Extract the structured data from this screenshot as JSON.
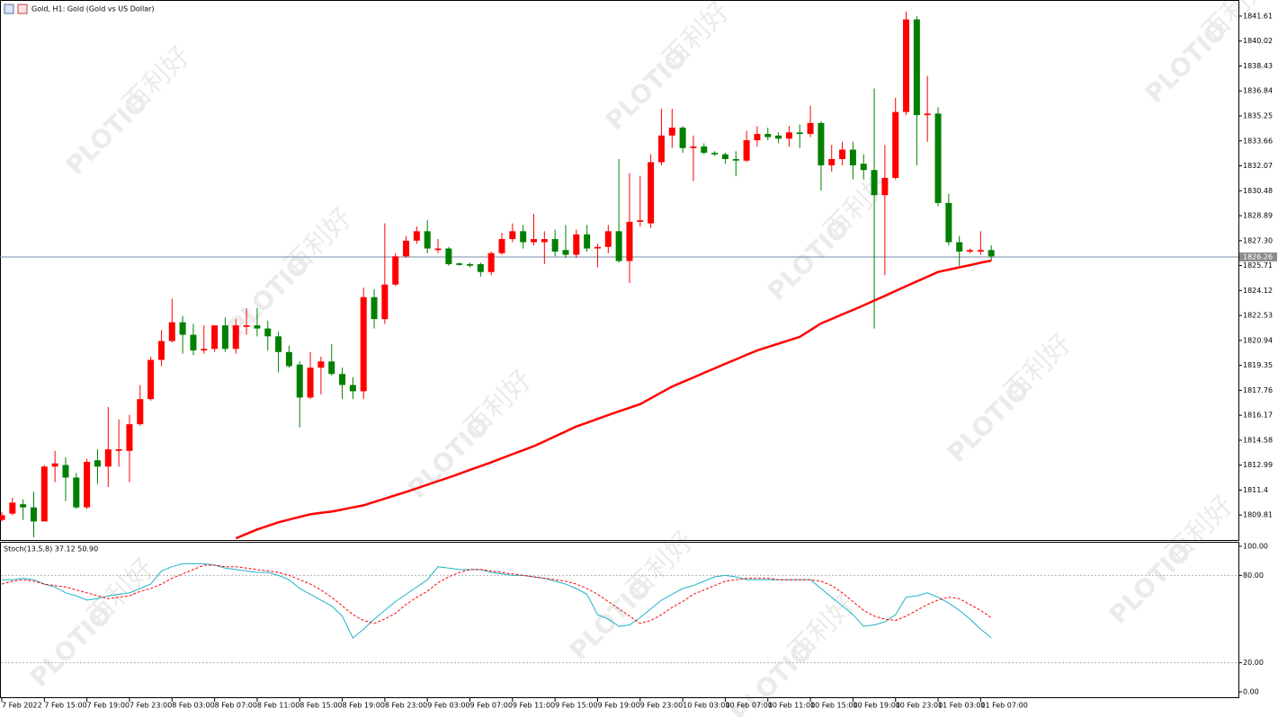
{
  "chart_data": [
    {
      "type": "candlestick",
      "title": "Gold, H1:  Gold (Gold vs US Dollar)",
      "categories": [
        "7 Feb 2022",
        null,
        null,
        null,
        "7 Feb 15:00",
        null,
        null,
        null,
        "7 Feb 19:00",
        null,
        null,
        null,
        "7 Feb 23:00",
        null,
        null,
        null,
        "8 Feb 03:00",
        null,
        null,
        null,
        "8 Feb 07:00",
        null,
        null,
        null,
        "8 Feb 11:00",
        null,
        null,
        null,
        "8 Feb 15:00",
        null,
        null,
        null,
        "8 Feb 19:00",
        null,
        null,
        null,
        "8 Feb 23:00",
        null,
        null,
        null,
        "9 Feb 03:00",
        null,
        null,
        null,
        "9 Feb 07:00",
        null,
        null,
        null,
        "9 Feb 11:00",
        null,
        null,
        null,
        "9 Feb 15:00",
        null,
        null,
        null,
        "9 Feb 19:00",
        null,
        null,
        null,
        "9 Feb 23:00",
        null,
        null,
        null,
        "10 Feb 03:00",
        null,
        null,
        null,
        "10 Feb 07:00",
        null,
        null,
        null,
        "10 Feb 11:00",
        null,
        null,
        null,
        "10 Feb 15:00",
        null,
        null,
        null,
        "10 Feb 19:00",
        null,
        null,
        null,
        "10 Feb 23:00",
        null,
        null,
        null,
        "11 Feb 03:00",
        null,
        null,
        null,
        "11 Feb 07:00",
        null
      ],
      "open": [
        1809.5,
        1809.9,
        1810.5,
        1810.3,
        1809.4,
        1812.9,
        1813.0,
        1812.2,
        1810.3,
        1813.3,
        1812.9,
        1813.9,
        1813.9,
        1815.6,
        1817.2,
        1819.7,
        1820.9,
        1822.1,
        1821.3,
        1820.3,
        1820.4,
        1821.9,
        1820.4,
        1821.8,
        1821.9,
        1821.7,
        1821.2,
        1820.2,
        1819.4,
        1817.3,
        1819.2,
        1819.6,
        1818.8,
        1818.1,
        1817.7,
        1823.7,
        1822.3,
        1824.5,
        1826.3,
        1827.3,
        1827.9,
        1826.7,
        1826.8,
        1825.85,
        1825.8,
        1825.8,
        1825.3,
        1826.5,
        1827.4,
        1827.9,
        1827.2,
        1827.2,
        1827.4,
        1826.7,
        1826.4,
        1827.7,
        1826.8,
        1826.9,
        1827.9,
        1826.0,
        1828.5,
        1828.4,
        1832.3,
        1834.0,
        1834.5,
        1833.2,
        1833.3,
        1832.9,
        1832.8,
        1832.5,
        1832.4,
        1833.7,
        1834.1,
        1834.0,
        1833.8,
        1834.2,
        1834.1,
        1834.8,
        1832.1,
        1832.5,
        1833.1,
        1832.2,
        1831.8,
        1830.2,
        1831.3,
        1835.5,
        1841.4,
        1835.3,
        1835.4,
        1829.7,
        1827.2,
        1826.6,
        1826.6,
        1826.7
      ],
      "high": [
        1810.0,
        1810.9,
        1810.8,
        1811.3,
        1813.0,
        1813.9,
        1813.5,
        1812.5,
        1813.4,
        1814.0,
        1816.7,
        1815.9,
        1816.2,
        1818.1,
        1819.9,
        1821.6,
        1823.6,
        1822.5,
        1822.0,
        1821.9,
        1821.9,
        1822.4,
        1822.3,
        1823.0,
        1823.0,
        1822.2,
        1821.5,
        1820.6,
        1819.6,
        1820.2,
        1819.9,
        1820.7,
        1819.2,
        1818.6,
        1824.3,
        1824.2,
        1828.4,
        1826.5,
        1827.6,
        1828.2,
        1828.6,
        1827.4,
        1826.9,
        1825.9,
        1825.9,
        1825.9,
        1826.6,
        1827.8,
        1828.4,
        1828.3,
        1829.0,
        1827.9,
        1828.0,
        1828.3,
        1828.0,
        1828.3,
        1827.1,
        1828.3,
        1832.5,
        1831.6,
        1831.4,
        1832.8,
        1835.7,
        1835.7,
        1834.6,
        1834.0,
        1833.5,
        1833.0,
        1832.9,
        1833.0,
        1834.3,
        1834.6,
        1834.5,
        1834.2,
        1834.6,
        1834.7,
        1835.9,
        1834.9,
        1833.4,
        1833.6,
        1833.6,
        1832.8,
        1837.0,
        1833.4,
        1836.4,
        1841.9,
        1841.6,
        1837.8,
        1835.8,
        1830.3,
        1827.6,
        1826.8,
        1827.9,
        1827.0
      ],
      "low": [
        1809.4,
        1809.8,
        1809.5,
        1808.4,
        1809.4,
        1811.9,
        1810.7,
        1810.2,
        1810.2,
        1811.8,
        1811.6,
        1812.9,
        1811.9,
        1815.5,
        1817.1,
        1819.3,
        1820.8,
        1820.1,
        1820.0,
        1820.1,
        1820.2,
        1820.2,
        1820.1,
        1821.3,
        1821.2,
        1820.3,
        1818.9,
        1819.2,
        1815.4,
        1817.2,
        1817.5,
        1818.7,
        1817.2,
        1817.2,
        1817.2,
        1821.7,
        1822.0,
        1824.4,
        1826.2,
        1827.1,
        1826.5,
        1826.5,
        1825.7,
        1825.7,
        1825.6,
        1825.0,
        1825.1,
        1826.4,
        1827.2,
        1826.8,
        1827.0,
        1825.8,
        1826.3,
        1826.2,
        1826.2,
        1826.6,
        1825.6,
        1826.5,
        1825.9,
        1824.6,
        1828.2,
        1828.1,
        1832.1,
        1833.2,
        1832.9,
        1831.1,
        1832.8,
        1832.7,
        1832.2,
        1831.4,
        1832.3,
        1833.3,
        1833.7,
        1833.5,
        1833.3,
        1833.2,
        1833.9,
        1830.5,
        1831.7,
        1832.1,
        1831.2,
        1831.2,
        1821.7,
        1825.1,
        1831.2,
        1835.3,
        1832.1,
        1833.6,
        1829.5,
        1827.0,
        1825.7,
        1826.5,
        1826.4,
        1826.0
      ],
      "close": [
        1809.8,
        1810.6,
        1810.3,
        1809.4,
        1812.9,
        1813.1,
        1812.2,
        1810.3,
        1813.2,
        1812.9,
        1814.0,
        1814.0,
        1815.6,
        1817.2,
        1819.7,
        1820.9,
        1822.1,
        1821.3,
        1820.3,
        1820.4,
        1821.9,
        1820.4,
        1821.9,
        1821.9,
        1821.7,
        1821.2,
        1820.2,
        1819.3,
        1817.3,
        1819.2,
        1819.6,
        1818.8,
        1818.1,
        1817.7,
        1823.7,
        1822.3,
        1824.5,
        1826.3,
        1827.3,
        1827.9,
        1826.8,
        1826.8,
        1825.8,
        1825.75,
        1825.7,
        1825.3,
        1826.5,
        1827.4,
        1827.9,
        1827.2,
        1827.4,
        1827.4,
        1826.6,
        1826.4,
        1827.7,
        1826.8,
        1826.9,
        1827.9,
        1826.0,
        1828.5,
        1828.6,
        1832.3,
        1834.0,
        1834.5,
        1833.2,
        1833.3,
        1832.9,
        1832.8,
        1832.5,
        1832.4,
        1833.7,
        1834.1,
        1833.9,
        1833.8,
        1834.2,
        1834.1,
        1834.8,
        1832.1,
        1832.5,
        1833.1,
        1832.1,
        1831.8,
        1830.2,
        1831.3,
        1835.5,
        1841.4,
        1835.3,
        1835.4,
        1829.7,
        1827.2,
        1826.6,
        1826.7,
        1826.7,
        1826.3
      ],
      "up_color": "#ff0000",
      "down_color": "#008000",
      "ma": {
        "color": "#ff0000",
        "values": [
          null,
          null,
          null,
          null,
          null,
          null,
          null,
          null,
          null,
          null,
          null,
          null,
          null,
          null,
          null,
          null,
          null,
          null,
          null,
          null,
          null,
          null,
          1808.33,
          1808.61,
          1808.89,
          1809.12,
          1809.35,
          1809.52,
          1809.69,
          1809.86,
          1809.95,
          1810.03,
          1810.16,
          1810.3,
          1810.43,
          1810.64,
          1810.86,
          1811.07,
          1811.28,
          1811.51,
          1811.74,
          1811.97,
          1812.2,
          1812.44,
          1812.69,
          1812.93,
          1813.17,
          1813.43,
          1813.69,
          1813.94,
          1814.2,
          1814.51,
          1814.83,
          1815.14,
          1815.45,
          1815.69,
          1815.94,
          1816.18,
          1816.42,
          1816.65,
          1816.88,
          1817.25,
          1817.63,
          1818.0,
          1818.29,
          1818.58,
          1818.87,
          1819.16,
          1819.45,
          1819.73,
          1820.02,
          1820.3,
          1820.52,
          1820.73,
          1820.95,
          1821.17,
          1821.6,
          1822.02,
          1822.31,
          1822.6,
          1822.88,
          1823.17,
          1823.48,
          1823.78,
          1824.09,
          1824.4,
          1824.7,
          1825.0,
          1825.3,
          1825.45,
          1825.6,
          1825.74,
          1825.89,
          1826.03
        ]
      },
      "current_price": 1826.26,
      "ylim": [
        1808.22,
        1842.58
      ],
      "yticks": [
        1841.61,
        1840.02,
        1838.43,
        1836.84,
        1835.25,
        1833.66,
        1832.07,
        1830.48,
        1828.89,
        {
          "value": 1827.3,
          "label": "1827.30"
        },
        1825.71,
        1824.12,
        1822.53,
        1820.94,
        1819.35,
        1817.76,
        1816.17,
        1814.58,
        1812.99,
        1811.4,
        1809.81
      ]
    },
    {
      "type": "line",
      "title": "Stoch(13,5,8) 37.12 50.90",
      "series": [
        {
          "color": "#20b2c8",
          "dash": false,
          "values": [
            77,
            77,
            78,
            77,
            74,
            72,
            68,
            66,
            63,
            64,
            66,
            67,
            68,
            71,
            74,
            83,
            86,
            88,
            88,
            88,
            87,
            85,
            84,
            83,
            82,
            82,
            80,
            77,
            71,
            67,
            63,
            59,
            52,
            37,
            43,
            50,
            56,
            62,
            67,
            72,
            77,
            86,
            85,
            84,
            84,
            84,
            82,
            81,
            80,
            80,
            79,
            78,
            76,
            74,
            71,
            67,
            53,
            50,
            45,
            46,
            51,
            57,
            63,
            67,
            71,
            73,
            76,
            79,
            80,
            79,
            77,
            77,
            77,
            77,
            77,
            77,
            77,
            71,
            65,
            59,
            53,
            45,
            46,
            48,
            53,
            65,
            66,
            68,
            65,
            61,
            56,
            50,
            43,
            37.12
          ]
        },
        {
          "color": "#ff0000",
          "dash": true,
          "values": [
            74,
            76,
            77,
            76,
            74,
            73,
            72,
            70,
            68,
            66,
            64,
            65,
            66,
            69,
            71,
            74,
            78,
            81,
            84,
            87,
            87,
            86,
            86,
            85,
            84,
            83,
            82,
            80,
            77,
            74,
            70,
            65,
            59,
            53,
            49,
            47,
            50,
            54,
            60,
            65,
            69,
            75,
            79,
            82,
            84,
            84,
            83,
            82,
            81,
            80,
            79,
            78,
            77,
            76,
            74,
            71,
            67,
            62,
            57,
            52,
            47,
            49,
            53,
            58,
            62,
            67,
            70,
            73,
            76,
            77,
            78,
            78,
            78,
            77,
            77,
            77,
            77,
            76,
            73,
            68,
            62,
            56,
            52,
            50,
            49,
            52,
            56,
            60,
            63,
            65,
            64,
            60,
            56,
            50.9
          ]
        }
      ],
      "levels": [
        80,
        20
      ],
      "ylim": [
        -3.7,
        102.45
      ],
      "yticks": [
        {
          "value": 100,
          "label": "100.00"
        },
        {
          "value": 80,
          "label": "80.00"
        },
        {
          "value": 20,
          "label": "20.00"
        },
        {
          "value": 0,
          "label": "0.00"
        }
      ]
    }
  ],
  "watermark": {
    "brand": "PLOTIO",
    "chinese": "百利好"
  }
}
